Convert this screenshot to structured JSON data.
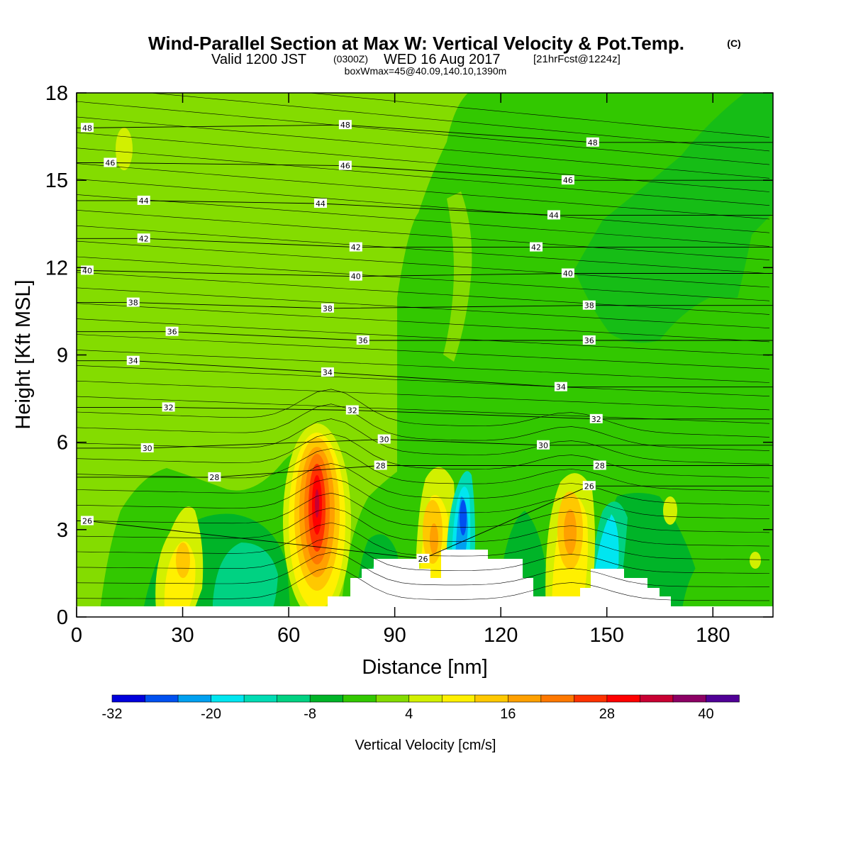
{
  "header": {
    "title": "Wind-Parallel Section at Max W: Vertical Velocity & Pot.Temp.",
    "copyright": "(C)",
    "valid_prefix": "Valid 1200 JST",
    "valid_utc": "(0300Z)",
    "valid_date": "WED 16 Aug 2017",
    "forecast": "[21hrFcst@1224z]",
    "box_info": "boxWmax=45@40.09,140.10,1390m"
  },
  "colors": {
    "background": "#84dc00",
    "terrain": "#ffffff",
    "contour": "#000000"
  },
  "chart_data": {
    "type": "heatmap",
    "title": "Wind-Parallel Section at Max W: Vertical Velocity & Pot.Temp.",
    "xlabel": "Distance [nm]",
    "ylabel": "Height [Kft MSL]",
    "xlim": [
      0,
      197
    ],
    "ylim": [
      0,
      18
    ],
    "x_ticks": [
      0,
      30,
      60,
      90,
      120,
      150,
      180
    ],
    "y_ticks": [
      0,
      3,
      6,
      9,
      12,
      15,
      18
    ],
    "colorbar": {
      "label": "Vertical Velocity [cm/s]",
      "tick_labels": [
        "-32",
        "-20",
        "-8",
        "4",
        "16",
        "28",
        "40"
      ],
      "colors": [
        "#0000dc",
        "#0050f0",
        "#00a0f0",
        "#00e6f0",
        "#00dcb4",
        "#00d282",
        "#00b428",
        "#32c800",
        "#84dc00",
        "#d2f000",
        "#fff000",
        "#ffc800",
        "#ffa000",
        "#ff7800",
        "#ff3200",
        "#ff0000",
        "#c80032",
        "#8c0064",
        "#500096"
      ]
    },
    "terrain_profile": [
      [
        0,
        0.3
      ],
      [
        72,
        0.3
      ],
      [
        72,
        0.6
      ],
      [
        79,
        0.6
      ],
      [
        79,
        1.3
      ],
      [
        82,
        1.3
      ],
      [
        82,
        1.6
      ],
      [
        86,
        1.6
      ],
      [
        86,
        2.0
      ],
      [
        99,
        2.0
      ],
      [
        99,
        1.6
      ],
      [
        102,
        1.6
      ],
      [
        102,
        1.3
      ],
      [
        105,
        1.3
      ],
      [
        105,
        2.3
      ],
      [
        114,
        2.3
      ],
      [
        114,
        2.0
      ],
      [
        122,
        2.0
      ],
      [
        122,
        1.3
      ],
      [
        125,
        1.3
      ],
      [
        125,
        0.6
      ],
      [
        139,
        0.6
      ],
      [
        139,
        1.0
      ],
      [
        142,
        1.0
      ],
      [
        142,
        1.6
      ],
      [
        152,
        1.6
      ],
      [
        152,
        1.3
      ],
      [
        158,
        1.3
      ],
      [
        158,
        1.0
      ],
      [
        161,
        1.0
      ],
      [
        161,
        0.6
      ],
      [
        164,
        0.6
      ],
      [
        164,
        0.3
      ],
      [
        197,
        0.3
      ]
    ],
    "isentrope_labels": [
      {
        "value": "48",
        "x": 3,
        "y": 16.8
      },
      {
        "value": "48",
        "x": 76,
        "y": 16.9
      },
      {
        "value": "48",
        "x": 146,
        "y": 16.3
      },
      {
        "value": "46",
        "x": 9.5,
        "y": 15.6
      },
      {
        "value": "46",
        "x": 76,
        "y": 15.5
      },
      {
        "value": "46",
        "x": 139,
        "y": 15.0
      },
      {
        "value": "44",
        "x": 19,
        "y": 14.3
      },
      {
        "value": "44",
        "x": 69,
        "y": 14.2
      },
      {
        "value": "44",
        "x": 135,
        "y": 13.8
      },
      {
        "value": "42",
        "x": 19,
        "y": 13.0
      },
      {
        "value": "42",
        "x": 79,
        "y": 12.7
      },
      {
        "value": "42",
        "x": 130,
        "y": 12.7
      },
      {
        "value": "40",
        "x": 3,
        "y": 11.9
      },
      {
        "value": "40",
        "x": 79,
        "y": 11.7
      },
      {
        "value": "40",
        "x": 139,
        "y": 11.8
      },
      {
        "value": "38",
        "x": 16,
        "y": 10.8
      },
      {
        "value": "38",
        "x": 71,
        "y": 10.6
      },
      {
        "value": "38",
        "x": 145,
        "y": 10.7
      },
      {
        "value": "36",
        "x": 27,
        "y": 9.8
      },
      {
        "value": "36",
        "x": 81,
        "y": 9.5
      },
      {
        "value": "36",
        "x": 145,
        "y": 9.5
      },
      {
        "value": "34",
        "x": 16,
        "y": 8.8
      },
      {
        "value": "34",
        "x": 71,
        "y": 8.4
      },
      {
        "value": "34",
        "x": 137,
        "y": 7.9
      },
      {
        "value": "32",
        "x": 26,
        "y": 7.2
      },
      {
        "value": "32",
        "x": 78,
        "y": 7.1
      },
      {
        "value": "32",
        "x": 147,
        "y": 6.8
      },
      {
        "value": "30",
        "x": 20,
        "y": 5.8
      },
      {
        "value": "30",
        "x": 87,
        "y": 6.1
      },
      {
        "value": "30",
        "x": 132,
        "y": 5.9
      },
      {
        "value": "28",
        "x": 39,
        "y": 4.8
      },
      {
        "value": "28",
        "x": 86,
        "y": 5.2
      },
      {
        "value": "28",
        "x": 148,
        "y": 5.2
      },
      {
        "value": "26",
        "x": 3,
        "y": 3.3
      },
      {
        "value": "26",
        "x": 98,
        "y": 2.0
      },
      {
        "value": "26",
        "x": 145,
        "y": 4.5
      }
    ],
    "updraft_cores": [
      {
        "x": 68,
        "y": 3.8,
        "w_cm_s": 40
      },
      {
        "x": 101,
        "y": 3.5,
        "w_cm_s": 16
      },
      {
        "x": 140,
        "y": 3.2,
        "w_cm_s": 20
      },
      {
        "x": 29,
        "y": 2.3,
        "w_cm_s": 12
      }
    ],
    "downdraft_cores": [
      {
        "x": 109,
        "y": 3.2,
        "w_cm_s": -28
      },
      {
        "x": 147,
        "y": 2.5,
        "w_cm_s": -16
      },
      {
        "x": 47,
        "y": 2.0,
        "w_cm_s": -12
      }
    ]
  }
}
